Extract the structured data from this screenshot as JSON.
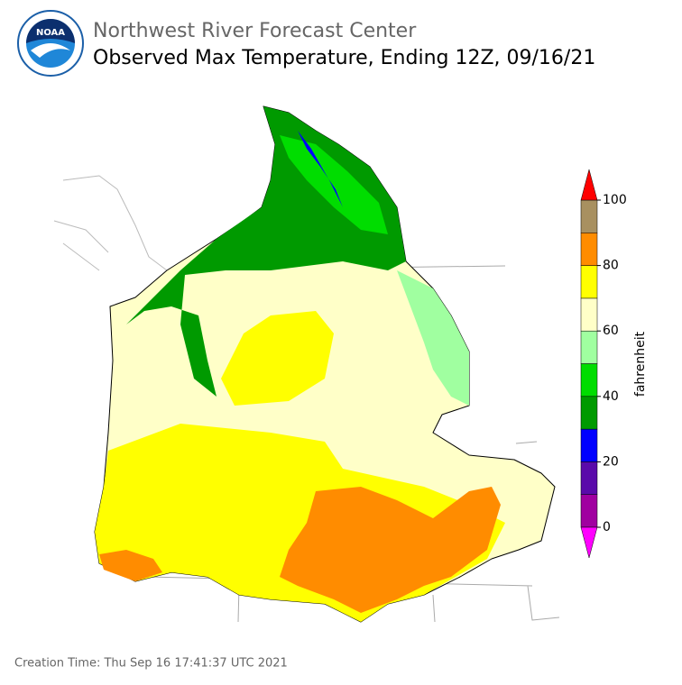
{
  "header": {
    "logo_text": "NOAA",
    "title": "Northwest River Forecast Center",
    "subtitle": "Observed Max Temperature, Ending 12Z, 09/16/21"
  },
  "colorbar": {
    "label": "fahrenheit",
    "lim": [
      0,
      100
    ],
    "ticks": [
      0,
      20,
      40,
      60,
      80,
      100
    ],
    "colors": [
      "#a000a0",
      "#5a0aaa",
      "#0000ff",
      "#009a00",
      "#00dd00",
      "#a0ff a0",
      "#ffffc8",
      "#ffff00",
      "#ff8c00",
      "#a89060"
    ],
    "under_color": "#ff00ff",
    "over_color": "#ff0000"
  },
  "footer": {
    "creation_time": "Creation Time: Thu Sep 16 17:41:37 UTC 2021"
  }
}
